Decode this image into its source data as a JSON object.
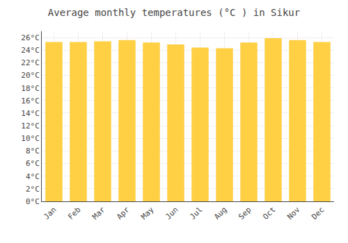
{
  "chart_data": {
    "type": "bar",
    "title": "Average monthly temperatures (°C ) in Sikur",
    "categories": [
      "Jan",
      "Feb",
      "Mar",
      "Apr",
      "May",
      "Jun",
      "Jul",
      "Aug",
      "Sep",
      "Oct",
      "Nov",
      "Dec"
    ],
    "values": [
      25.3,
      25.3,
      25.4,
      25.6,
      25.2,
      24.9,
      24.4,
      24.3,
      25.2,
      25.9,
      25.6,
      25.3
    ],
    "color": "#FFCF44",
    "ylim": [
      0,
      27
    ],
    "yticks": [
      {
        "value": 0,
        "label": "0°C"
      },
      {
        "value": 2,
        "label": "2°C"
      },
      {
        "value": 4,
        "label": "4°C"
      },
      {
        "value": 6,
        "label": "6°C"
      },
      {
        "value": 8,
        "label": "8°C"
      },
      {
        "value": 10,
        "label": "10°C"
      },
      {
        "value": 12,
        "label": "12°C"
      },
      {
        "value": 14,
        "label": "14°C"
      },
      {
        "value": 16,
        "label": "16°C"
      },
      {
        "value": 18,
        "label": "18°C"
      },
      {
        "value": 20,
        "label": "20°C"
      },
      {
        "value": 22,
        "label": "22°C"
      },
      {
        "value": 24,
        "label": "24°C"
      },
      {
        "value": 26,
        "label": "26°C"
      }
    ],
    "grid": true
  }
}
